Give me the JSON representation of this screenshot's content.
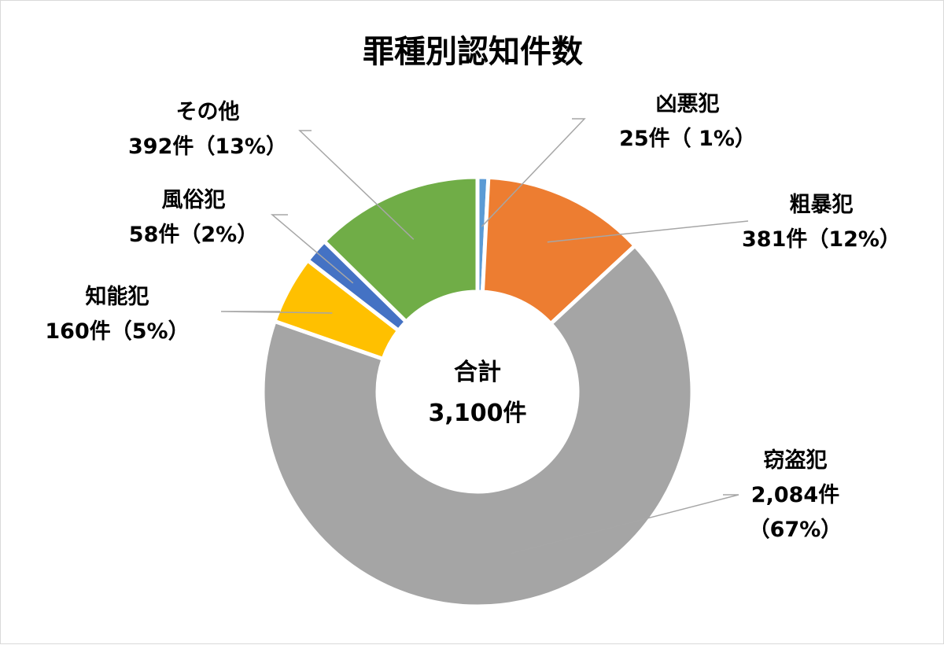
{
  "chart_data": {
    "type": "pie",
    "title": "罪種別認知件数",
    "center_label": [
      "合計",
      "3,100件"
    ],
    "categories": [
      "凶悪犯",
      "粗暴犯",
      "窃盗犯",
      "知能犯",
      "風俗犯",
      "その他"
    ],
    "values": [
      25,
      381,
      2084,
      160,
      58,
      392
    ],
    "total": 3100,
    "colors": [
      "#5b9bd5",
      "#ed7d31",
      "#a5a5a5",
      "#ffc000",
      "#4472c4",
      "#70ad47"
    ],
    "labels": [
      [
        "凶悪犯",
        "25件（ 1%）"
      ],
      [
        "粗暴犯",
        "381件（12%）"
      ],
      [
        "窃盗犯",
        "2,084件",
        "（67%）"
      ],
      [
        "知能犯",
        "160件（5%）"
      ],
      [
        "風俗犯",
        "58件（2%）"
      ],
      [
        "その他",
        "392件（13%）"
      ]
    ],
    "hole": "donut",
    "legend": "none"
  }
}
